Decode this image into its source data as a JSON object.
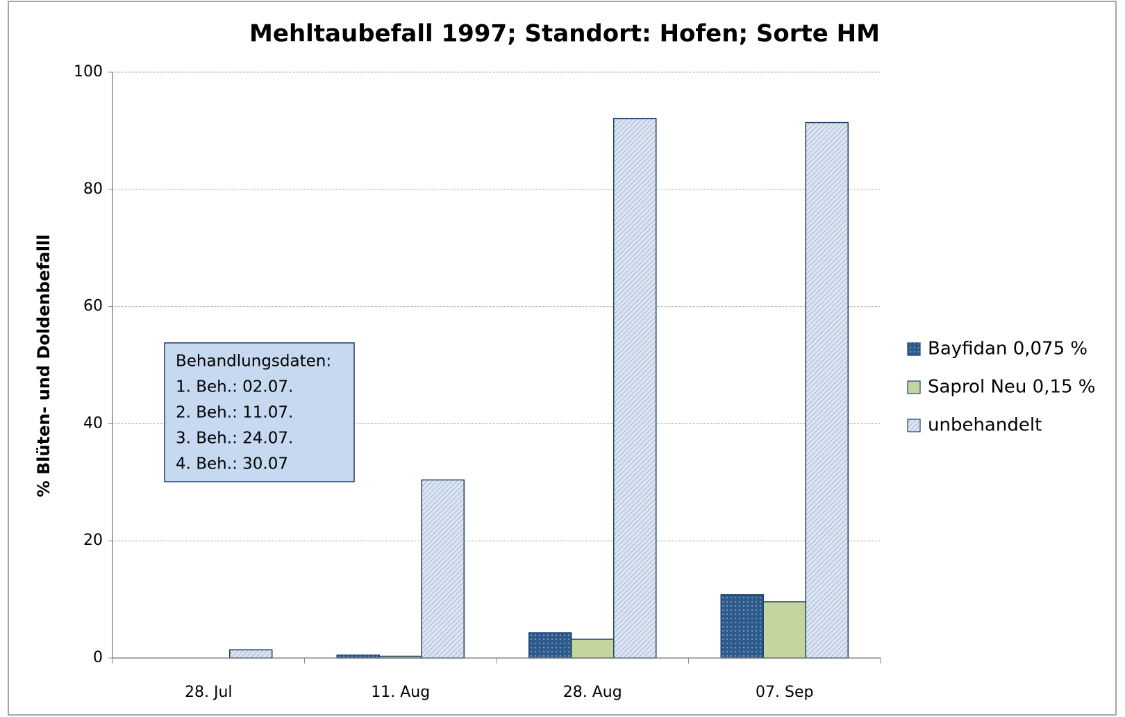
{
  "chart_data": {
    "type": "bar",
    "title": "Mehltaubefall 1997; Standort: Hofen; Sorte HM",
    "ylabel": "% Blüten- und Doldenbefalll",
    "categories": [
      "28. Jul",
      "11. Aug",
      "28. Aug",
      "07. Sep"
    ],
    "series": [
      {
        "name": "Bayfidan 0,075 %",
        "color": "#2e5a8c",
        "pattern": "dots",
        "values": [
          0,
          0.5,
          4.3,
          10.8
        ]
      },
      {
        "name": "Saprol Neu 0,15 %",
        "color": "#c3d69b",
        "pattern": "solid",
        "values": [
          0,
          0.3,
          3.2,
          9.6
        ]
      },
      {
        "name": "unbehandelt",
        "color": "#dce6f2",
        "pattern": "hatch",
        "values": [
          1.4,
          30.4,
          92.1,
          91.4
        ]
      }
    ],
    "ylim": [
      0,
      100
    ],
    "yticks": [
      0,
      20,
      40,
      60,
      80,
      100
    ],
    "grid": true,
    "legend": "right",
    "annotation": {
      "lines": [
        "Behandlungsdaten:",
        "1. Beh.: 02.07.",
        "2. Beh.: 11.07.",
        "3. Beh.: 24.07.",
        "4. Beh.: 30.07"
      ]
    }
  }
}
